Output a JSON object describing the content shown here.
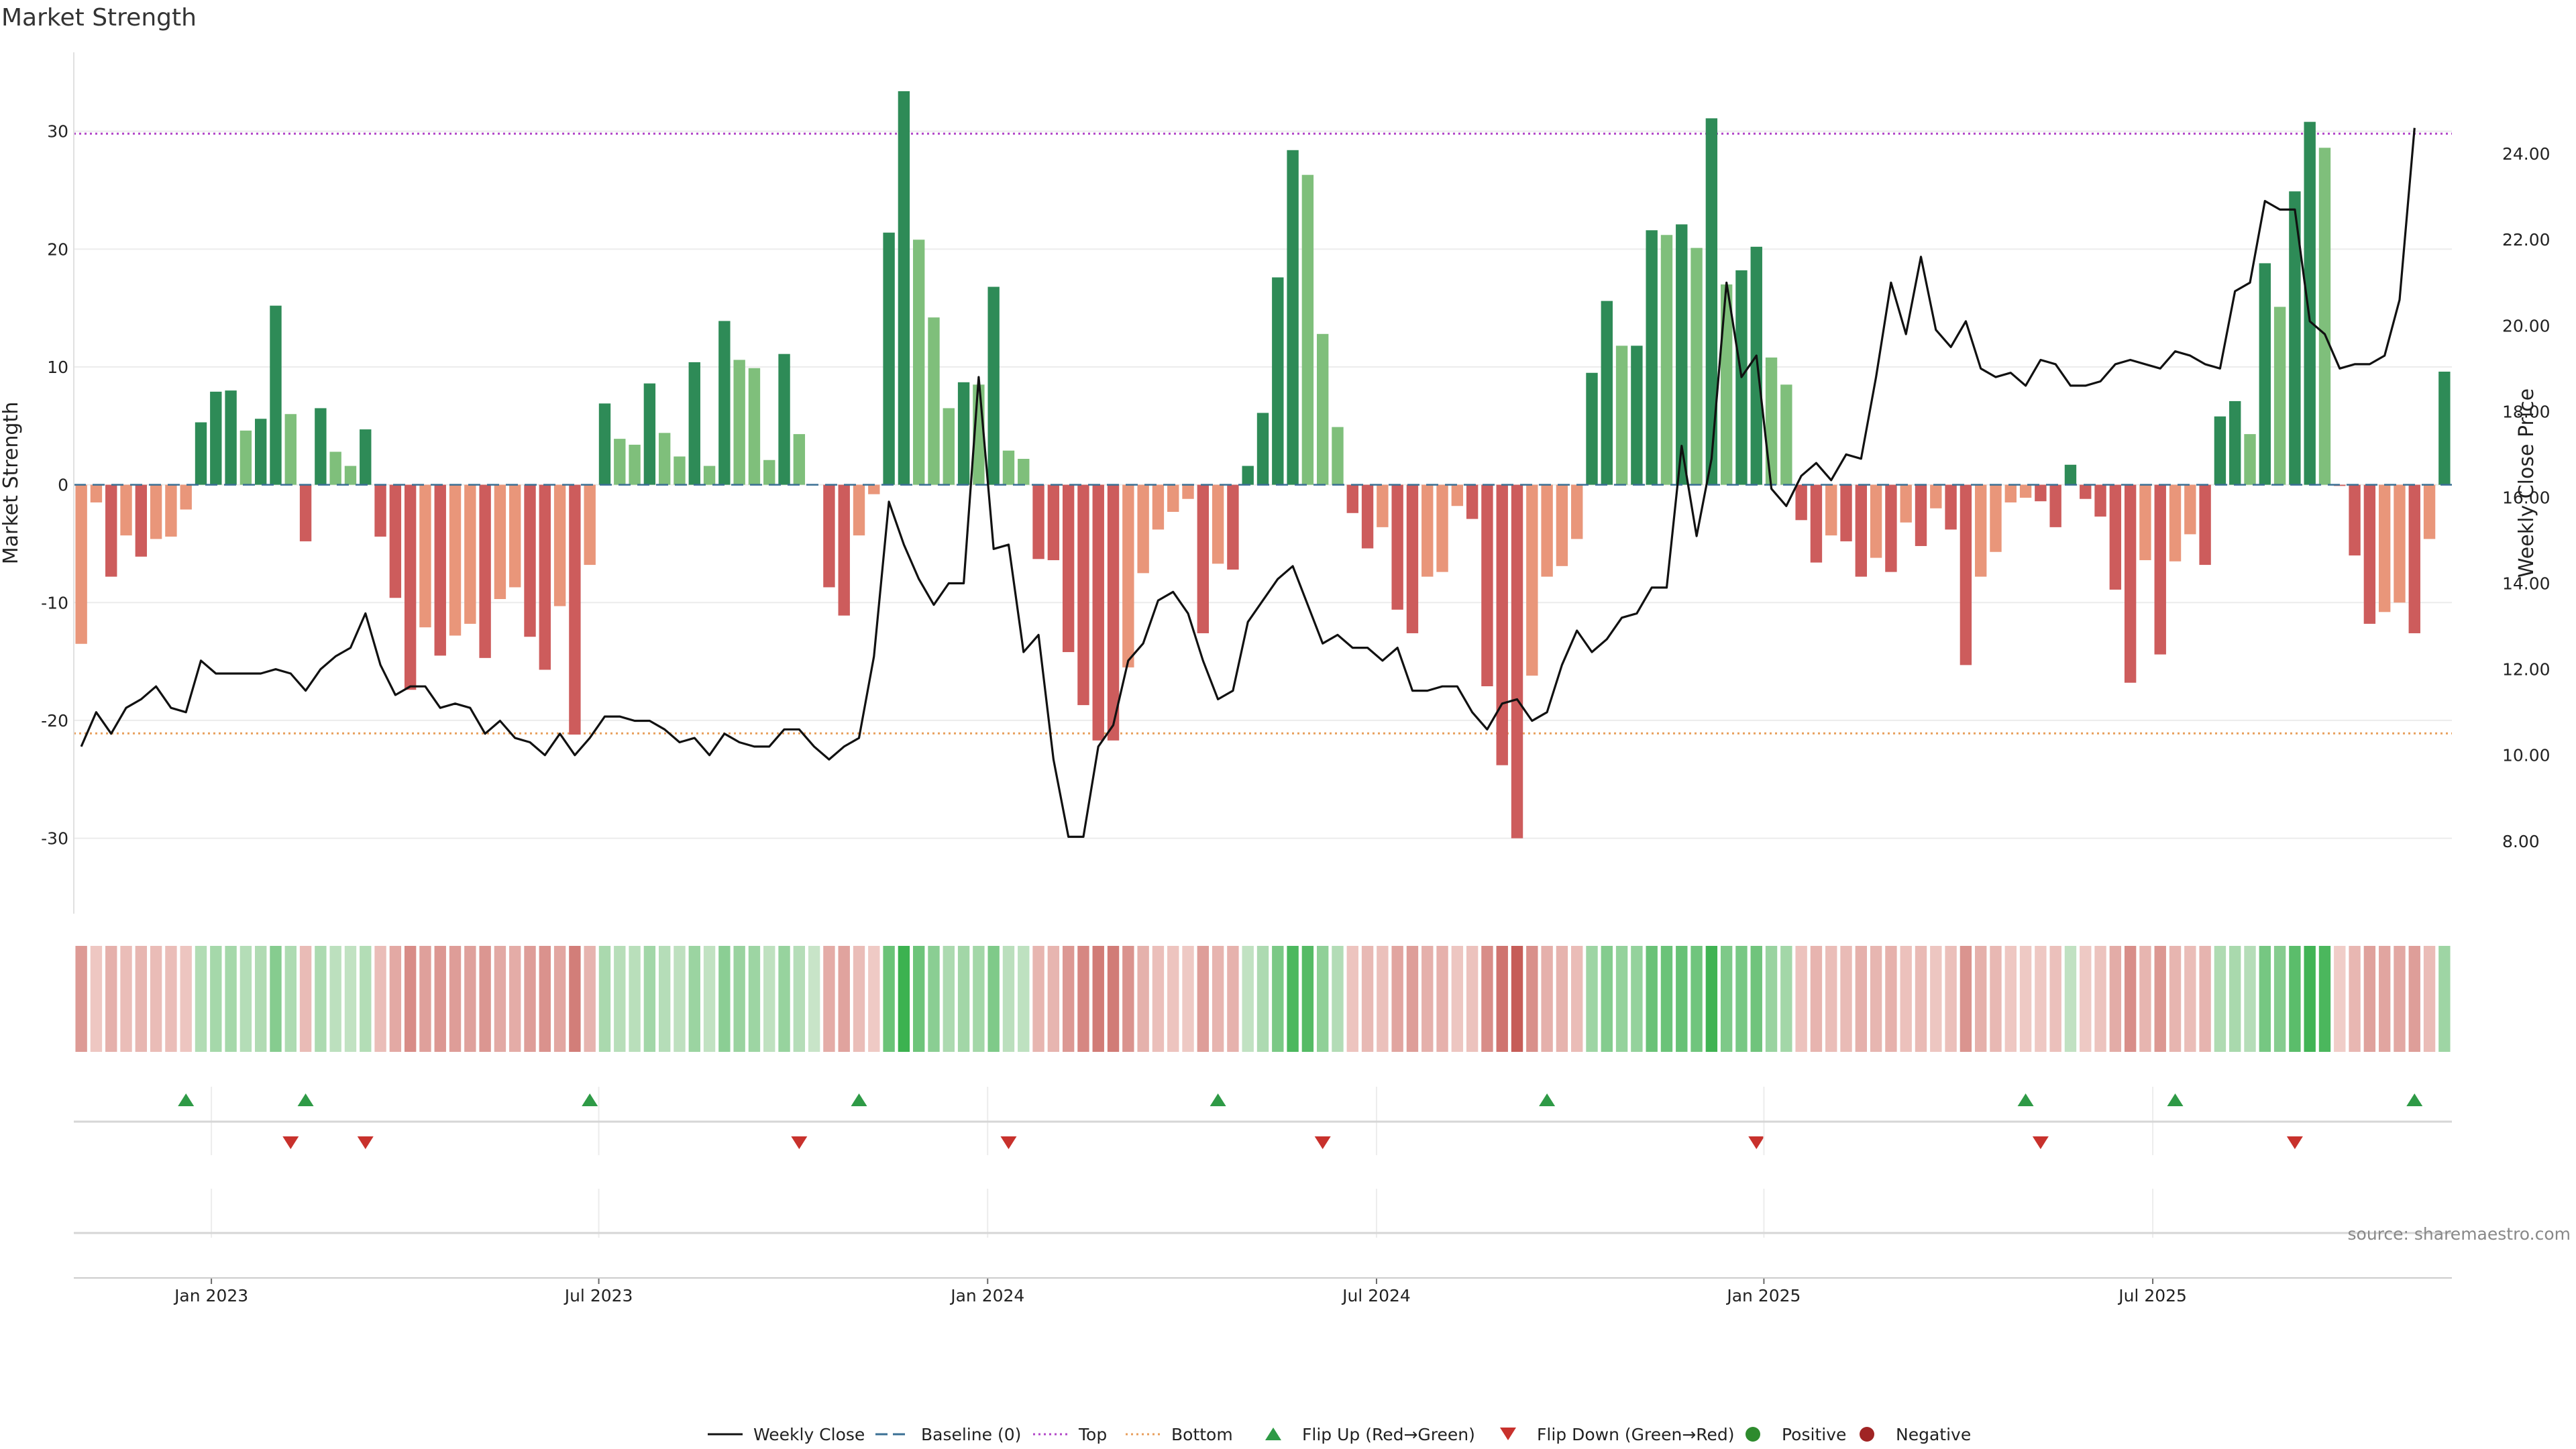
{
  "chart_data": {
    "type": "bar",
    "title": "Market Strength",
    "ylabel_left": "Market Strength",
    "ylabel_right": "Weekly Close Price",
    "yticks_left": [
      30,
      20,
      10,
      0,
      -10,
      -20,
      -30
    ],
    "yticks_right": [
      "24.00",
      "22.00",
      "20.00",
      "18.00",
      "16.00",
      "14.00",
      "12.00",
      "10.00",
      "8.00"
    ],
    "ylim_left": [
      -36.4,
      36.7
    ],
    "ylim_right": [
      6.31,
      26.36
    ],
    "top_line": 29.8,
    "bottom_line": -21.1,
    "x_ticks": [
      "Jan 2023",
      "Jul 2023",
      "Jan 2024",
      "Jul 2024",
      "Jan 2025",
      "Jul 2025"
    ],
    "x_tick_week_index": [
      9.2,
      35.1,
      61.1,
      87.1,
      113.0,
      139.0
    ],
    "strength": [
      -13.5,
      -1.5,
      -7.8,
      -4.3,
      -6.1,
      -4.6,
      -4.4,
      -2.1,
      5.3,
      7.9,
      8.0,
      4.6,
      5.6,
      15.2,
      6.0,
      -4.8,
      6.5,
      2.8,
      1.6,
      4.7,
      -4.4,
      -9.6,
      -17.4,
      -12.1,
      -14.5,
      -12.8,
      -11.8,
      -14.7,
      -9.7,
      -8.7,
      -12.9,
      -15.7,
      -10.3,
      -21.2,
      -6.8,
      6.9,
      3.9,
      3.4,
      8.6,
      4.4,
      2.4,
      10.4,
      1.6,
      13.9,
      10.6,
      9.9,
      2.1,
      11.1,
      4.3,
      0.0,
      -8.7,
      -11.1,
      -4.3,
      -0.8,
      21.4,
      33.4,
      20.8,
      14.2,
      6.5,
      8.7,
      8.5,
      16.8,
      2.9,
      2.2,
      -6.3,
      -6.4,
      -14.2,
      -18.7,
      -21.7,
      -21.7,
      -15.5,
      -7.5,
      -3.8,
      -2.3,
      -1.2,
      -12.6,
      -6.7,
      -7.2,
      1.6,
      6.1,
      17.6,
      28.4,
      26.3,
      12.8,
      4.9,
      -2.4,
      -5.4,
      -3.6,
      -10.6,
      -12.6,
      -7.8,
      -7.4,
      -1.8,
      -2.9,
      -17.1,
      -23.8,
      -30.0,
      -16.2,
      -7.8,
      -6.9,
      -4.6,
      9.5,
      15.6,
      11.8,
      11.8,
      21.6,
      21.2,
      22.1,
      20.1,
      31.1,
      17.0,
      18.2,
      20.2,
      10.8,
      8.5,
      -3.0,
      -6.6,
      -4.3,
      -4.8,
      -7.8,
      -6.2,
      -7.4,
      -3.2,
      -5.2,
      -2.0,
      -3.8,
      -15.3,
      -7.8,
      -5.7,
      -1.5,
      -1.1,
      -1.4,
      -3.6,
      1.7,
      -1.2,
      -2.7,
      -8.9,
      -16.8,
      -6.4,
      -14.4,
      -6.5,
      -4.2,
      -6.8,
      5.8,
      7.1,
      4.3,
      18.8,
      15.1,
      24.9,
      30.8,
      28.6,
      -0.1,
      -6.0,
      -11.8,
      -10.8,
      -10.0,
      -12.6,
      -4.6,
      9.6
    ],
    "weekly_close": [
      10.2,
      11.0,
      10.5,
      11.1,
      11.3,
      11.6,
      11.1,
      11.0,
      12.2,
      11.9,
      11.9,
      11.9,
      11.9,
      12.0,
      11.9,
      11.5,
      12.0,
      12.3,
      12.5,
      13.3,
      12.1,
      11.4,
      11.6,
      11.6,
      11.1,
      11.2,
      11.1,
      10.5,
      10.8,
      10.4,
      10.3,
      10.0,
      10.5,
      10.0,
      10.4,
      10.9,
      10.9,
      10.8,
      10.8,
      10.6,
      10.3,
      10.4,
      10.0,
      10.5,
      10.3,
      10.2,
      10.2,
      10.6,
      10.6,
      10.2,
      9.9,
      10.2,
      10.4,
      12.3,
      15.9,
      14.9,
      14.1,
      13.5,
      14.0,
      14.0,
      18.8,
      14.8,
      14.9,
      12.4,
      12.8,
      9.9,
      8.1,
      8.1,
      10.2,
      10.7,
      12.2,
      12.6,
      13.6,
      13.8,
      13.3,
      12.2,
      11.3,
      11.5,
      13.1,
      13.6,
      14.1,
      14.4,
      13.5,
      12.6,
      12.8,
      12.5,
      12.5,
      12.2,
      12.5,
      11.5,
      11.5,
      11.6,
      11.6,
      11.0,
      10.6,
      11.2,
      11.3,
      10.8,
      11.0,
      12.1,
      12.9,
      12.4,
      12.7,
      13.2,
      13.3,
      13.9,
      13.9,
      17.2,
      15.1,
      16.9,
      21.0,
      18.8,
      19.3,
      16.2,
      15.8,
      16.5,
      16.8,
      16.4,
      17.0,
      16.9,
      18.8,
      21.0,
      19.8,
      21.6,
      19.9,
      19.5,
      20.1,
      19.0,
      18.8,
      18.9,
      18.6,
      19.2,
      19.1,
      18.6,
      18.6,
      18.7,
      19.1,
      19.2,
      19.1,
      19.0,
      19.4,
      19.3,
      19.1,
      19.0,
      20.8,
      21.0,
      22.9,
      22.7,
      22.7,
      20.1,
      19.8,
      19.0,
      19.1,
      19.1,
      19.3,
      20.6,
      24.6
    ],
    "flip_up_weeks": [
      7,
      15,
      34,
      52,
      76,
      98,
      130,
      140,
      156
    ],
    "flip_down_weeks": [
      14,
      19,
      48,
      62,
      83,
      112,
      131,
      148
    ],
    "source": "source: sharemaestro.com",
    "legend": [
      {
        "label": "Weekly Close",
        "kind": "line",
        "color": "#111111"
      },
      {
        "label": "Baseline (0)",
        "kind": "dash",
        "color": "#3a6f94"
      },
      {
        "label": "Top",
        "kind": "dots",
        "color": "#b246c8"
      },
      {
        "label": "Bottom",
        "kind": "dots",
        "color": "#e89f5c"
      },
      {
        "label": "Flip Up (Red→Green)",
        "kind": "triangle-up",
        "color": "#2e9a46"
      },
      {
        "label": "Flip Down (Green→Red)",
        "kind": "triangle-down",
        "color": "#c8312c"
      },
      {
        "label": "Positive",
        "kind": "circle",
        "color": "#2e8b2e"
      },
      {
        "label": "Negative",
        "kind": "circle",
        "color": "#a02424"
      }
    ],
    "colors": {
      "pos_strong": "#2e8b57",
      "pos_light": "#7fbf7b",
      "neg_strong": "#cd5c5c",
      "neg_light": "#e9967a",
      "top": "#b246c8",
      "bottom": "#e89f5c",
      "baseline": "#3a6f94"
    }
  }
}
